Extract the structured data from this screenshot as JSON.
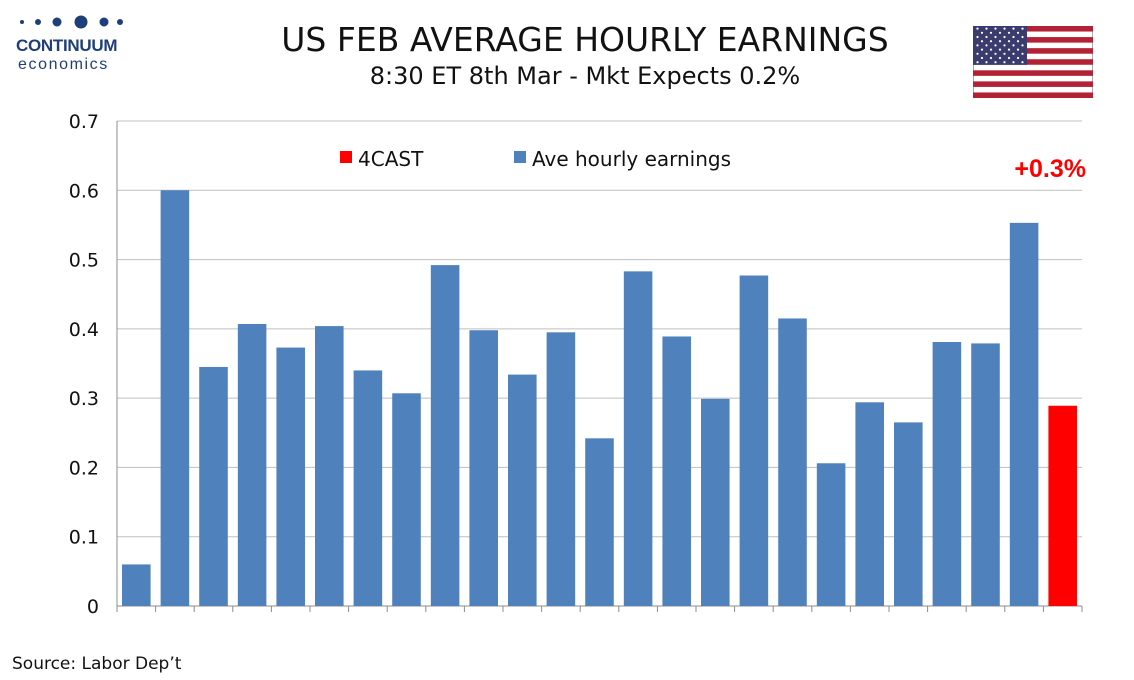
{
  "header": {
    "title": "US FEB AVERAGE HOURLY EARNINGS",
    "subtitle": "8:30 ET 8th Mar - Mkt Expects 0.2%",
    "logo_name": "CONTINUUM",
    "logo_sub": "economics",
    "flag_icon": "us-flag-icon"
  },
  "footer": {
    "source": "Source: Labor Dep’t"
  },
  "colors": {
    "series": "#4f81bd",
    "forecast": "#ff0000",
    "gridline": "#bfbfbf",
    "logo": "#1f3f7a"
  },
  "chart_data": {
    "type": "bar",
    "title": "US FEB AVERAGE HOURLY EARNINGS",
    "subtitle": "8:30 ET 8th Mar - Mkt Expects 0.2%",
    "xlabel": "",
    "ylabel": "",
    "ylim": [
      0,
      0.7
    ],
    "yticks": [
      "0",
      "0.1",
      "0.2",
      "0.3",
      "0.4",
      "0.5",
      "0.6",
      "0.7"
    ],
    "grid": true,
    "legend_position": "top",
    "legend": [
      {
        "name": "4CAST",
        "color": "#ff0000"
      },
      {
        "name": "Ave hourly earnings",
        "color": "#4f81bd"
      }
    ],
    "series": [
      {
        "name": "Ave hourly earnings",
        "color": "#4f81bd",
        "values": [
          0.06,
          0.6,
          0.345,
          0.407,
          0.373,
          0.404,
          0.34,
          0.307,
          0.492,
          0.398,
          0.334,
          0.395,
          0.242,
          0.483,
          0.389,
          0.299,
          0.477,
          0.415,
          0.206,
          0.294,
          0.265,
          0.381,
          0.379,
          0.553,
          null
        ]
      },
      {
        "name": "4CAST",
        "color": "#ff0000",
        "values": [
          null,
          null,
          null,
          null,
          null,
          null,
          null,
          null,
          null,
          null,
          null,
          null,
          null,
          null,
          null,
          null,
          null,
          null,
          null,
          null,
          null,
          null,
          null,
          null,
          0.289
        ]
      }
    ],
    "annotation": "+0.3%"
  }
}
